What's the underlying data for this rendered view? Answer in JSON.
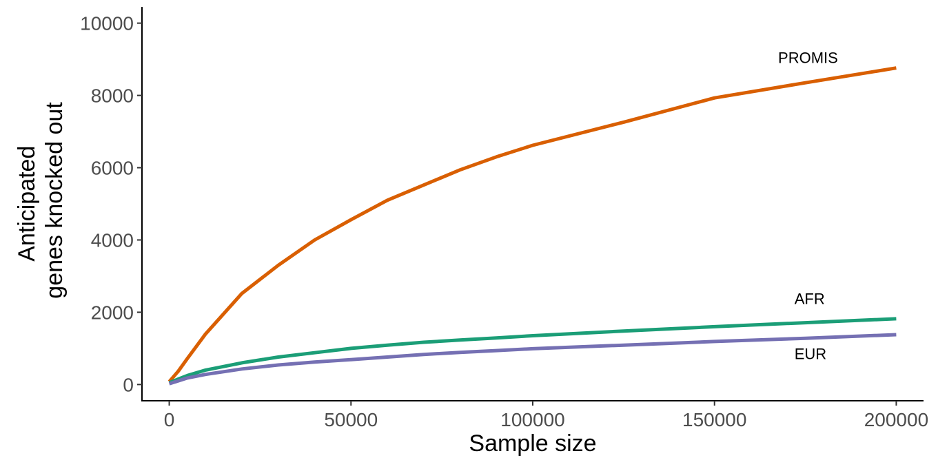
{
  "chart_data": {
    "type": "line",
    "xlabel": "Sample size",
    "ylabel_lines": [
      "Anticipated",
      "genes knocked out"
    ],
    "xlim": [
      -7500,
      207500
    ],
    "ylim": [
      -450,
      10450
    ],
    "x_ticks": [
      0,
      50000,
      100000,
      150000,
      200000
    ],
    "y_ticks": [
      0,
      2000,
      4000,
      6000,
      8000,
      10000
    ],
    "grid": false,
    "series": [
      {
        "name": "PROMIS",
        "color": "#D95F02",
        "x": [
          0,
          2500,
          5000,
          10000,
          20000,
          30000,
          40000,
          50000,
          60000,
          70000,
          80000,
          90000,
          100000,
          125000,
          150000,
          175000,
          200000
        ],
        "y": [
          80,
          370,
          720,
          1400,
          2520,
          3300,
          4000,
          4560,
          5100,
          5520,
          5940,
          6300,
          6620,
          7260,
          7930,
          8350,
          8760
        ]
      },
      {
        "name": "AFR",
        "color": "#1B9E77",
        "x": [
          0,
          2500,
          5000,
          10000,
          20000,
          30000,
          40000,
          50000,
          60000,
          70000,
          80000,
          90000,
          100000,
          125000,
          150000,
          175000,
          200000
        ],
        "y": [
          50,
          150,
          250,
          400,
          600,
          760,
          880,
          1000,
          1090,
          1170,
          1230,
          1290,
          1350,
          1480,
          1600,
          1710,
          1820
        ]
      },
      {
        "name": "EUR",
        "color": "#7570B3",
        "x": [
          0,
          2500,
          5000,
          10000,
          20000,
          30000,
          40000,
          50000,
          60000,
          70000,
          80000,
          90000,
          100000,
          125000,
          150000,
          175000,
          200000
        ],
        "y": [
          20,
          100,
          180,
          280,
          430,
          540,
          620,
          690,
          760,
          830,
          890,
          940,
          990,
          1090,
          1190,
          1280,
          1380
        ]
      }
    ],
    "annotations": [
      {
        "text": "PROMIS",
        "x": 167500,
        "y": 8900
      },
      {
        "text": "AFR",
        "x": 172000,
        "y": 2230
      },
      {
        "text": "EUR",
        "x": 172000,
        "y": 700
      }
    ]
  }
}
